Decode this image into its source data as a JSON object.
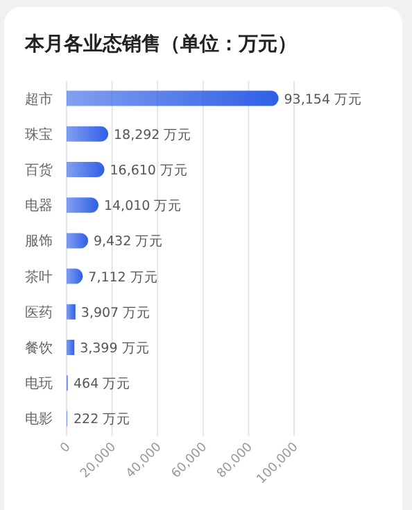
{
  "chart_data": {
    "type": "bar",
    "orientation": "horizontal",
    "title": "本月各业态销售（单位：万元）",
    "categories": [
      "超市",
      "珠宝",
      "百货",
      "电器",
      "服饰",
      "茶叶",
      "医药",
      "餐饮",
      "电玩",
      "电影"
    ],
    "values": [
      93154,
      18292,
      16610,
      14010,
      9432,
      7112,
      3907,
      3399,
      464,
      222
    ],
    "value_labels": [
      "93,154 万元",
      "18,292 万元",
      "16,610 万元",
      "14,010 万元",
      "9,432 万元",
      "7,112 万元",
      "3,907 万元",
      "3,399 万元",
      "464 万元",
      "222 万元"
    ],
    "color": "#2f5fe6",
    "xlim": [
      0,
      100000
    ],
    "xticks": [
      {
        "value": 0,
        "label": "0"
      },
      {
        "value": 20000,
        "label": "20,000"
      },
      {
        "value": 40000,
        "label": "40,000"
      },
      {
        "value": 60000,
        "label": "60,000"
      },
      {
        "value": 80000,
        "label": "80,000"
      },
      {
        "value": 100000,
        "label": "100,000"
      }
    ],
    "grid": "x"
  }
}
